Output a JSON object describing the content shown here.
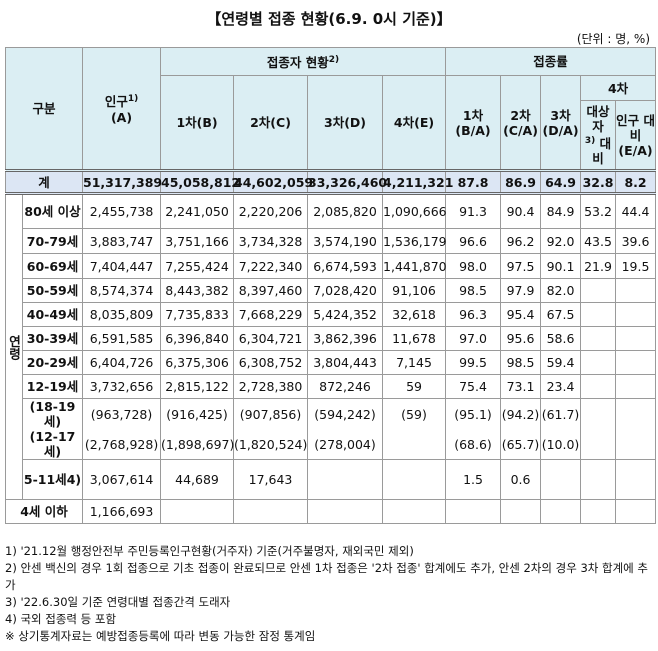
{
  "title": "【연령별 접종 현황(6.9. 0시 기준)】",
  "unit": "(단위 : 명, %)",
  "header": {
    "category": "구분",
    "population": "인구",
    "population_note": "1)",
    "population_code": "(A)",
    "vaccinated": "접종자 현황",
    "vaccinated_note": "2)",
    "rate": "접종률",
    "doses": [
      "1차(B)",
      "2차(C)",
      "3차(D)",
      "4차(E)"
    ],
    "rates": [
      {
        "name": "1차",
        "code": "(B/A)"
      },
      {
        "name": "2차",
        "code": "(C/A)"
      },
      {
        "name": "3차",
        "code": "(D/A)"
      }
    ],
    "dose4_rate": "4차",
    "eligible": "대상자",
    "eligible_note": "3)",
    "eligible_suffix": "대비",
    "pop_ratio": "인구 대비",
    "pop_ratio_code": "(E/A)"
  },
  "total": {
    "label": "계",
    "cells": [
      "51,317,389",
      "45,058,812",
      "44,602,059",
      "33,326,460",
      "4,211,321",
      "87.8",
      "86.9",
      "64.9",
      "32.8",
      "8.2"
    ]
  },
  "age_label": "연령",
  "rows": [
    {
      "label": "80세 이상",
      "cells": [
        "2,455,738",
        "2,241,050",
        "2,220,206",
        "2,085,820",
        "1,090,666",
        "91.3",
        "90.4",
        "84.9",
        "53.2",
        "44.4"
      ]
    },
    {
      "label": "70-79세",
      "cells": [
        "3,883,747",
        "3,751,166",
        "3,734,328",
        "3,574,190",
        "1,536,179",
        "96.6",
        "96.2",
        "92.0",
        "43.5",
        "39.6"
      ]
    },
    {
      "label": "60-69세",
      "cells": [
        "7,404,447",
        "7,255,424",
        "7,222,340",
        "6,674,593",
        "1,441,870",
        "98.0",
        "97.5",
        "90.1",
        "21.9",
        "19.5"
      ]
    },
    {
      "label": "50-59세",
      "cells": [
        "8,574,374",
        "8,443,382",
        "8,397,460",
        "7,028,420",
        "91,106",
        "98.5",
        "97.9",
        "82.0",
        null,
        null
      ]
    },
    {
      "label": "40-49세",
      "cells": [
        "8,035,809",
        "7,735,833",
        "7,668,229",
        "5,424,352",
        "32,618",
        "96.3",
        "95.4",
        "67.5",
        null,
        null
      ]
    },
    {
      "label": "30-39세",
      "cells": [
        "6,591,585",
        "6,396,840",
        "6,304,721",
        "3,862,396",
        "11,678",
        "97.0",
        "95.6",
        "58.6",
        null,
        null
      ]
    },
    {
      "label": "20-29세",
      "cells": [
        "6,404,726",
        "6,375,306",
        "6,308,752",
        "3,804,443",
        "7,145",
        "99.5",
        "98.5",
        "59.4",
        null,
        null
      ]
    },
    {
      "label": "12-19세",
      "cells": [
        "3,732,656",
        "2,815,122",
        "2,728,380",
        "872,246",
        "59",
        "75.4",
        "73.1",
        "23.4",
        null,
        null
      ]
    },
    {
      "label": "(18-19세)",
      "cells": [
        "(963,728)",
        "(916,425)",
        "(907,856)",
        "(594,242)",
        "(59)",
        "(95.1)",
        "(94.2)",
        "(61.7)",
        null,
        null
      ]
    },
    {
      "label": "(12-17세)",
      "cells": [
        "(2,768,928)",
        "(1,898,697)",
        "(1,820,524)",
        "(278,004)",
        null,
        "(68.6)",
        "(65.7)",
        "(10.0)",
        null,
        null
      ]
    },
    {
      "label": "5-11세",
      "note": "4)",
      "cells": [
        "3,067,614",
        "44,689",
        "17,643",
        null,
        null,
        "1.5",
        "0.6",
        null,
        null,
        null
      ]
    },
    {
      "label": "4세 이하",
      "cells": [
        "1,166,693",
        null,
        null,
        null,
        null,
        null,
        null,
        null,
        null,
        null
      ]
    }
  ],
  "footnotes": [
    "1) '21.12월 행정안전부 주민등록인구현황(거주자) 기준(거주불명자, 재외국민 제외)",
    "2) 안센 백신의 경우 1회 접종으로 기초 접종이 완료되므로 안센 1차 접종은 '2차 접종' 합계에도 추가, 안센 2차의 경우 3차 합계에 추가",
    "3) '22.6.30일 기준 연령대별 접종간격 도래자",
    "4) 국외 접종력 등 포함",
    "※ 상기통계자료는 예방접종등록에 따라 변동 가능한 잠정 통계임"
  ]
}
